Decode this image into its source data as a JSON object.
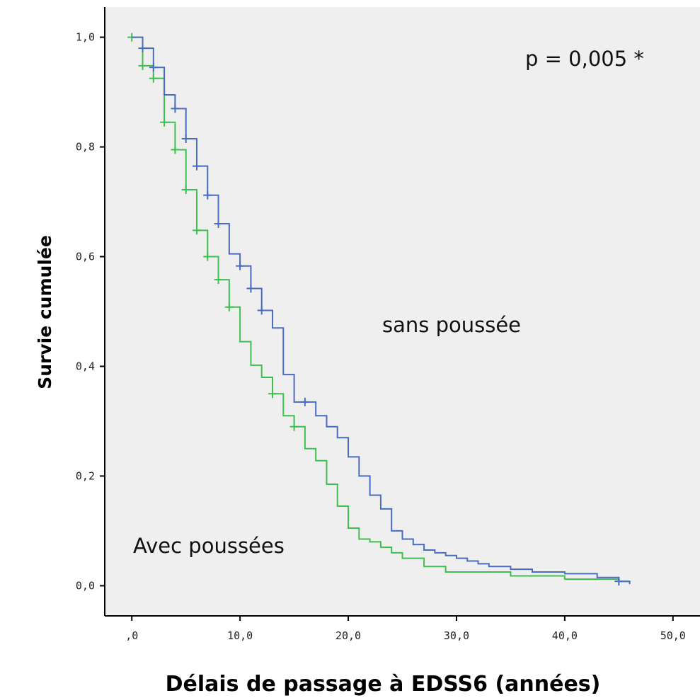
{
  "chart_data": {
    "type": "line",
    "title": "",
    "xlabel": "Délais de passage à EDSS6 (années)",
    "ylabel": "Survie cumulée",
    "xlim": [
      -2.5,
      52.5
    ],
    "ylim": [
      -0.055,
      1.055
    ],
    "x_ticks": [
      0,
      10,
      20,
      30,
      40,
      50
    ],
    "x_tick_labels": [
      ",0",
      "10,0",
      "20,0",
      "30,0",
      "40,0",
      "50,0"
    ],
    "y_ticks": [
      0,
      0.2,
      0.4,
      0.6,
      0.8,
      1.0
    ],
    "y_tick_labels": [
      "0,0",
      "0,2",
      "0,4",
      "0,6",
      "0,8",
      "1,0"
    ],
    "grid": false,
    "background_color": "#efefef",
    "annotations": [
      {
        "text": "p = 0,005  *"
      },
      {
        "text": "sans poussée"
      },
      {
        "text": "Avec poussées"
      }
    ],
    "series": [
      {
        "color": "#4a6cc0",
        "x": [
          0,
          1,
          2,
          3,
          4,
          5,
          6,
          7,
          8,
          9,
          10,
          11,
          12,
          13,
          14,
          15,
          16,
          17,
          18,
          19,
          20,
          21,
          22,
          23,
          24,
          25,
          26,
          27,
          28,
          29,
          30,
          31,
          32,
          33,
          35,
          37,
          40,
          43,
          45,
          46
        ],
        "y": [
          1.0,
          0.98,
          0.945,
          0.895,
          0.87,
          0.815,
          0.765,
          0.712,
          0.66,
          0.605,
          0.583,
          0.542,
          0.502,
          0.47,
          0.385,
          0.335,
          0.335,
          0.31,
          0.29,
          0.27,
          0.235,
          0.2,
          0.165,
          0.14,
          0.1,
          0.085,
          0.075,
          0.065,
          0.06,
          0.055,
          0.05,
          0.045,
          0.04,
          0.035,
          0.03,
          0.025,
          0.022,
          0.015,
          0.008,
          0.003
        ],
        "censored_x": [
          1,
          2,
          4,
          5,
          6,
          7,
          8,
          10,
          11,
          12,
          16,
          45
        ]
      },
      {
        "color": "#3fbf4f",
        "x": [
          0,
          1,
          2,
          3,
          4,
          5,
          6,
          7,
          8,
          9,
          10,
          11,
          12,
          13,
          14,
          15,
          16,
          17,
          18,
          19,
          20,
          21,
          22,
          23,
          24,
          25,
          27,
          29,
          35,
          40,
          45,
          46
        ],
        "y": [
          1.0,
          0.948,
          0.925,
          0.845,
          0.795,
          0.722,
          0.648,
          0.6,
          0.558,
          0.508,
          0.445,
          0.402,
          0.38,
          0.35,
          0.31,
          0.29,
          0.25,
          0.228,
          0.185,
          0.145,
          0.105,
          0.085,
          0.08,
          0.07,
          0.06,
          0.05,
          0.035,
          0.025,
          0.018,
          0.012,
          0.008,
          0.006
        ],
        "censored_x": [
          0,
          1,
          2,
          3,
          4,
          5,
          6,
          7,
          8,
          9,
          13,
          15
        ]
      }
    ]
  }
}
